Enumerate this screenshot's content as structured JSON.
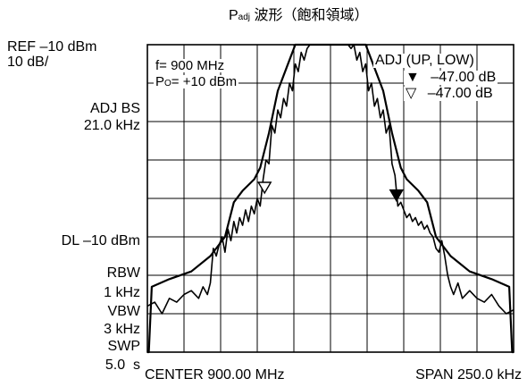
{
  "chart_data": {
    "type": "line",
    "title": {
      "main": "P",
      "subscript": "adj",
      "rest": " 波形（飽和領域）"
    },
    "left_panel": {
      "ref_line1": "REF –10 dBm",
      "ref_line2": "10 dB/",
      "adj_bs_line1": "ADJ BS",
      "adj_bs_line2": "21.0 kHz",
      "dl": "DL –10 dBm",
      "rbw_label": "RBW",
      "rbw_value": "1 kHz",
      "vbw_label": "VBW",
      "vbw_value": "3 kHz",
      "swp_label": "SWP",
      "swp_value": "5.0  s"
    },
    "inset_left": {
      "freq": "f= 900 MHz",
      "power_prefix": "P",
      "power_subscript": "O",
      "power_rest": "= +10 dBm"
    },
    "inset_right": {
      "header": "ADJ (UP, LOW)",
      "up_symbol": "▼",
      "up_value": "–47.00 dB",
      "low_symbol": "▽",
      "low_value": "–47.00 dB"
    },
    "x_axis": {
      "center_label": "CENTER 900.00 MHz",
      "span_label": "SPAN 250.0 kHz",
      "range_khz": [
        -125,
        125
      ],
      "divisions": 10
    },
    "y_axis": {
      "range_dbm": [
        -10,
        -90
      ],
      "divisions": 8,
      "dl_dbm": -10
    },
    "grid": true,
    "series": [
      {
        "role": "envelope",
        "x": [
          -125,
          -124,
          -122,
          -110,
          -95,
          -82,
          -72,
          -66,
          -60,
          -52,
          -48,
          -42,
          -36,
          -30,
          -24,
          -18,
          -12,
          -6,
          0,
          6,
          12,
          18,
          24,
          30,
          36,
          42,
          48,
          52,
          60,
          66,
          72,
          82,
          95,
          110,
          122,
          124,
          125
        ],
        "y": [
          -999,
          -999,
          -73,
          -71,
          -69,
          -65,
          -60,
          -51,
          -48,
          -45,
          -42,
          -33,
          -22,
          -16,
          -10,
          -5,
          -2,
          1,
          2,
          1,
          -2,
          -5,
          -10,
          -16,
          -22,
          -33,
          -42,
          -45,
          -48,
          -51,
          -60,
          -65,
          -69,
          -71,
          -73,
          -999,
          -999
        ]
      },
      {
        "role": "measured",
        "x": [
          -125,
          -120,
          -115,
          -110,
          -105,
          -100,
          -95,
          -90,
          -87,
          -84,
          -82,
          -80,
          -78,
          -76,
          -74,
          -72,
          -70,
          -68,
          -66,
          -64,
          -62,
          -60,
          -58,
          -56,
          -54,
          -52,
          -50,
          -48,
          -46,
          -44,
          -42,
          -40,
          -38,
          -36,
          -34,
          -32,
          -30,
          -28,
          -26,
          -24,
          -22,
          -20,
          -18,
          -16,
          -14,
          -12,
          -10,
          -8,
          -6,
          -4,
          -2,
          0,
          2,
          4,
          6,
          8,
          10,
          12,
          14,
          16,
          18,
          20,
          22,
          24,
          26,
          28,
          30,
          32,
          34,
          36,
          38,
          40,
          42,
          44,
          46,
          48,
          50,
          52,
          54,
          56,
          58,
          60,
          62,
          64,
          66,
          68,
          70,
          72,
          74,
          76,
          78,
          80,
          82,
          84,
          87,
          90,
          95,
          100,
          105,
          110,
          115,
          120,
          125
        ],
        "y": [
          -78,
          -77,
          -80,
          -76,
          -77,
          -75,
          -74,
          -76,
          -73,
          -75,
          -72,
          -63,
          -65,
          -62,
          -60,
          -64,
          -58,
          -61,
          -56,
          -59,
          -55,
          -57,
          -53,
          -56,
          -52,
          -54,
          -50,
          -52,
          -45,
          -40,
          -41,
          -31,
          -33,
          -27,
          -29,
          -24,
          -26,
          -20,
          -22,
          -15,
          -17,
          -12,
          -14,
          -11,
          -10,
          -7,
          -9,
          -8,
          -6,
          -5,
          -7,
          -4,
          -6,
          -5,
          -7,
          -6,
          -9,
          -8,
          -11,
          -10,
          -14,
          -12,
          -17,
          -15,
          -22,
          -20,
          -26,
          -24,
          -29,
          -27,
          -33,
          -31,
          -41,
          -44,
          -52,
          -51,
          -53,
          -55,
          -54,
          -56,
          -55,
          -57,
          -56,
          -58,
          -57,
          -59,
          -60,
          -63,
          -64,
          -61,
          -65,
          -70,
          -73,
          -75,
          -72,
          -76,
          -74,
          -76,
          -77,
          -75,
          -78,
          -80,
          -79
        ]
      }
    ],
    "markers": [
      {
        "symbol": "open-triangle",
        "x_khz": -45,
        "y_dbm": -50
      },
      {
        "symbol": "filled-triangle",
        "x_khz": 45,
        "y_dbm": -52
      }
    ]
  }
}
